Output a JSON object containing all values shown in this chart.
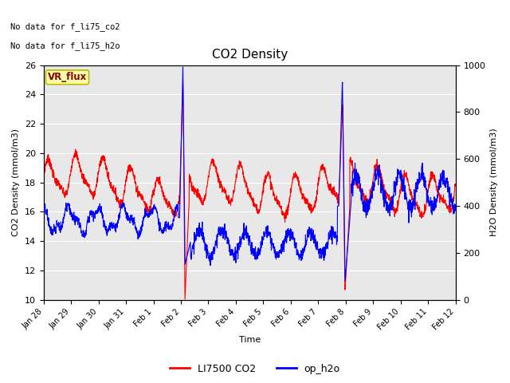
{
  "title": "CO2 Density",
  "xlabel": "Time",
  "ylabel_left": "CO2 Density (mmol/m3)",
  "ylabel_right": "H2O Density (mmol/m3)",
  "ylim_left": [
    10,
    26
  ],
  "ylim_right": [
    0,
    1000
  ],
  "bg_color": "#e8e8e8",
  "text_top_left": [
    "No data for f_li75_co2",
    "No data for f_li75_h2o"
  ],
  "vr_flux_label": "VR_flux",
  "legend_entries": [
    "LI7500 CO2",
    "op_h2o"
  ],
  "co2_color": "red",
  "h2o_color": "blue",
  "linewidth": 0.8,
  "tick_labels": [
    "Jan 28",
    "Jan 29",
    "Jan 30",
    "Jan 31",
    "Feb 1",
    "Feb 2",
    "Feb 3",
    "Feb 4",
    "Feb 5",
    "Feb 6",
    "Feb 7",
    "Feb 8",
    "Feb 9",
    "Feb 10",
    "Feb 11",
    "Feb 12"
  ],
  "figsize": [
    6.4,
    4.8
  ],
  "dpi": 100
}
